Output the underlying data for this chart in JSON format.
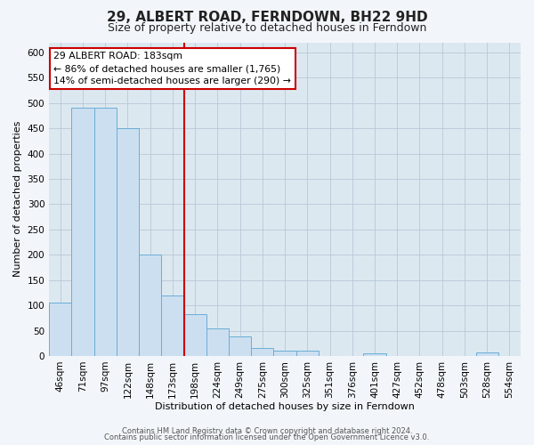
{
  "title": "29, ALBERT ROAD, FERNDOWN, BH22 9HD",
  "subtitle": "Size of property relative to detached houses in Ferndown",
  "xlabel": "Distribution of detached houses by size in Ferndown",
  "ylabel": "Number of detached properties",
  "bin_labels": [
    "46sqm",
    "71sqm",
    "97sqm",
    "122sqm",
    "148sqm",
    "173sqm",
    "198sqm",
    "224sqm",
    "249sqm",
    "275sqm",
    "300sqm",
    "325sqm",
    "351sqm",
    "376sqm",
    "401sqm",
    "427sqm",
    "452sqm",
    "478sqm",
    "503sqm",
    "528sqm",
    "554sqm"
  ],
  "bar_heights": [
    105,
    490,
    490,
    450,
    200,
    120,
    82,
    55,
    38,
    15,
    10,
    10,
    0,
    0,
    5,
    0,
    0,
    0,
    0,
    7,
    0
  ],
  "bar_color": "#ccdff0",
  "bar_edge_color": "#6aaed6",
  "vline_color": "#cc0000",
  "vline_x_index": 5.5,
  "annotation_title": "29 ALBERT ROAD: 183sqm",
  "annotation_line1": "← 86% of detached houses are smaller (1,765)",
  "annotation_line2": "14% of semi-detached houses are larger (290) →",
  "annotation_box_facecolor": "#ffffff",
  "annotation_box_edgecolor": "#cc0000",
  "ylim": [
    0,
    620
  ],
  "yticks": [
    0,
    50,
    100,
    150,
    200,
    250,
    300,
    350,
    400,
    450,
    500,
    550,
    600
  ],
  "plot_bg_color": "#dce8f0",
  "fig_bg_color": "#f2f6fa",
  "grid_color": "#b8c8d8",
  "footer_line1": "Contains HM Land Registry data © Crown copyright and database right 2024.",
  "footer_line2": "Contains public sector information licensed under the Open Government Licence v3.0.",
  "title_fontsize": 11,
  "subtitle_fontsize": 9,
  "xlabel_fontsize": 8,
  "ylabel_fontsize": 8,
  "tick_fontsize": 7.5,
  "footer_fontsize": 6
}
